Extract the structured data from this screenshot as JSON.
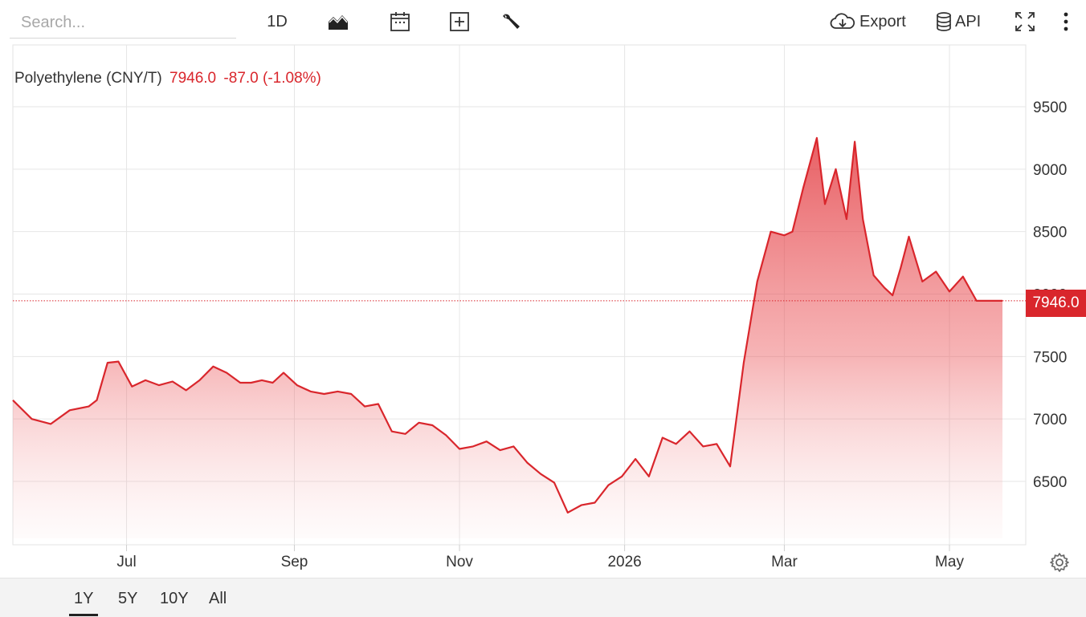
{
  "toolbar": {
    "search_placeholder": "Search...",
    "interval_label": "1D",
    "export_label": "Export",
    "api_label": "API",
    "icons": [
      "area-chart-icon",
      "calendar-icon",
      "plus-box-icon",
      "wrench-icon",
      "cloud-download-icon",
      "database-icon",
      "fullscreen-icon",
      "more-vert-icon",
      "gear-icon"
    ]
  },
  "legend": {
    "name": "Polyethylene (CNY/T)",
    "price": "7946.0",
    "change": "-87.0 (-1.08%)"
  },
  "price_tag": "7946.0",
  "colors": {
    "accent": "#d9262c",
    "grid": "#e6e6e6",
    "footer_bg": "#f3f3f3"
  },
  "ranges": [
    {
      "label": "1Y",
      "active": true
    },
    {
      "label": "5Y",
      "active": false
    },
    {
      "label": "10Y",
      "active": false
    },
    {
      "label": "All",
      "active": false
    }
  ],
  "chart_data": {
    "type": "area",
    "series": [
      {
        "name": "Polyethylene (CNY/T)",
        "x": [
          "2025-05-20",
          "2025-05-27",
          "2025-06-03",
          "2025-06-10",
          "2025-06-17",
          "2025-06-20",
          "2025-06-24",
          "2025-06-28",
          "2025-07-03",
          "2025-07-08",
          "2025-07-13",
          "2025-07-18",
          "2025-07-23",
          "2025-07-28",
          "2025-08-02",
          "2025-08-07",
          "2025-08-12",
          "2025-08-16",
          "2025-08-20",
          "2025-08-24",
          "2025-08-28",
          "2025-09-02",
          "2025-09-07",
          "2025-09-12",
          "2025-09-17",
          "2025-09-22",
          "2025-09-27",
          "2025-10-02",
          "2025-10-07",
          "2025-10-12",
          "2025-10-17",
          "2025-10-22",
          "2025-10-27",
          "2025-11-01",
          "2025-11-06",
          "2025-11-11",
          "2025-11-16",
          "2025-11-21",
          "2025-11-26",
          "2025-12-01",
          "2025-12-06",
          "2025-12-11",
          "2025-12-16",
          "2025-12-21",
          "2025-12-26",
          "2025-12-31",
          "2026-01-05",
          "2026-01-10",
          "2026-01-15",
          "2026-01-20",
          "2026-01-25",
          "2026-01-30",
          "2026-02-04",
          "2026-02-09",
          "2026-02-14",
          "2026-02-19",
          "2026-02-24",
          "2026-03-01",
          "2026-03-04",
          "2026-03-08",
          "2026-03-13",
          "2026-03-16",
          "2026-03-20",
          "2026-03-24",
          "2026-03-27",
          "2026-03-30",
          "2026-04-03",
          "2026-04-07",
          "2026-04-10",
          "2026-04-13",
          "2026-04-16",
          "2026-04-21",
          "2026-04-26",
          "2026-05-01",
          "2026-05-06",
          "2026-05-11",
          "2026-05-16",
          "2026-05-21"
        ],
        "y": [
          7150,
          7000,
          6960,
          7070,
          7100,
          7150,
          7450,
          7460,
          7260,
          7310,
          7270,
          7300,
          7230,
          7310,
          7420,
          7370,
          7290,
          7290,
          7310,
          7290,
          7370,
          7270,
          7220,
          7200,
          7220,
          7200,
          7100,
          7120,
          6900,
          6880,
          6970,
          6950,
          6870,
          6760,
          6780,
          6820,
          6750,
          6780,
          6650,
          6560,
          6490,
          6250,
          6310,
          6330,
          6470,
          6540,
          6680,
          6540,
          6850,
          6800,
          6900,
          6780,
          6800,
          6620,
          7450,
          8100,
          8500,
          8470,
          8500,
          8850,
          9250,
          8720,
          9000,
          8600,
          9220,
          8600,
          8150,
          8050,
          7990,
          8210,
          8460,
          8100,
          8180,
          8020,
          8140,
          7946,
          7946,
          7946
        ],
        "values_note": ""
      }
    ],
    "xticks": [
      "Jul",
      "Sep",
      "Nov",
      "2026",
      "Mar",
      "May"
    ],
    "yticks": [
      6500,
      7000,
      7500,
      8000,
      8500,
      9000,
      9500
    ],
    "ylim": [
      6000,
      9900
    ],
    "title": "",
    "xlabel": "",
    "ylabel": "",
    "last_value": 7946.0,
    "grid": true,
    "legend_placement": "top-left"
  }
}
